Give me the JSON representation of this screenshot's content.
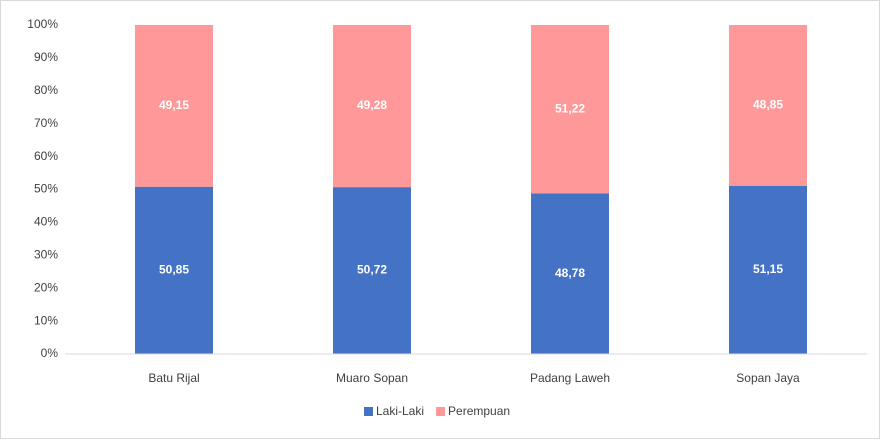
{
  "chart_data": {
    "type": "stacked_bar",
    "categories": [
      "Batu Rijal",
      "Muaro Sopan",
      "Padang Laweh",
      "Sopan Jaya"
    ],
    "series": [
      {
        "name": "Laki-Laki",
        "color": "#4472c4",
        "values": [
          50.85,
          50.72,
          48.78,
          51.15
        ],
        "value_labels": [
          "50,85",
          "50,72",
          "48,78",
          "51,15"
        ]
      },
      {
        "name": "Perempuan",
        "color": "#ff9999",
        "values": [
          49.15,
          49.28,
          51.22,
          48.85
        ],
        "value_labels": [
          "49,15",
          "49,28",
          "51,22",
          "48,85"
        ]
      }
    ],
    "ylim": [
      0,
      100
    ],
    "yticks": [
      {
        "value": 0,
        "label": "0%"
      },
      {
        "value": 10,
        "label": "10%"
      },
      {
        "value": 20,
        "label": "20%"
      },
      {
        "value": 30,
        "label": "30%"
      },
      {
        "value": 40,
        "label": "40%"
      },
      {
        "value": 50,
        "label": "50%"
      },
      {
        "value": 60,
        "label": "60%"
      },
      {
        "value": 70,
        "label": "70%"
      },
      {
        "value": 80,
        "label": "80%"
      },
      {
        "value": 90,
        "label": "90%"
      },
      {
        "value": 100,
        "label": "100%"
      }
    ],
    "grid": false,
    "legend": "bottom"
  }
}
